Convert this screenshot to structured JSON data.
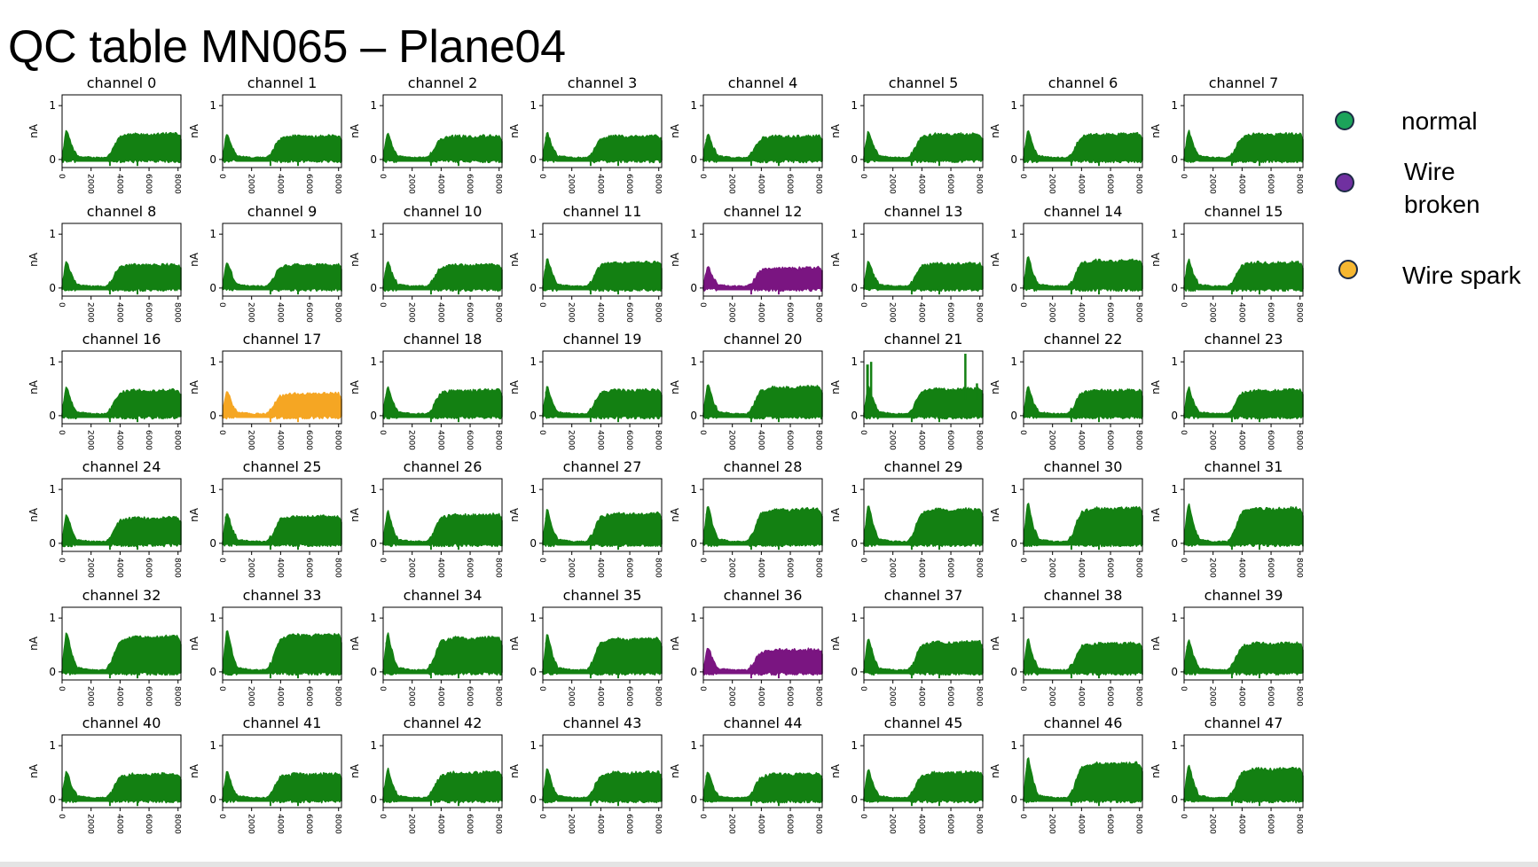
{
  "slide": {
    "title": "QC table MN065 – Plane04"
  },
  "legend": {
    "items": [
      {
        "key": "normal",
        "label": "normal",
        "color": "#1ca35a"
      },
      {
        "key": "broken",
        "label": "Wire broken",
        "color": "#7030a0"
      },
      {
        "key": "spark",
        "label": "Wire spark",
        "color": "#f6b731"
      }
    ]
  },
  "chart_data": {
    "type": "line",
    "layout": "6x8 small multiples",
    "panel_title_prefix": "channel",
    "ylabel": "nA",
    "xlim": [
      0,
      8200
    ],
    "ylim": [
      -0.15,
      1.2
    ],
    "x_ticks": [
      0,
      2000,
      4000,
      6000,
      8000
    ],
    "y_ticks": [
      0,
      1
    ],
    "grid": false,
    "status_colors": {
      "normal": "#138012",
      "broken": "#7a1581",
      "spark": "#f5a623"
    },
    "trace_profile": {
      "x": [
        0,
        300,
        700,
        1000,
        2000,
        3000,
        3400,
        3700,
        4000,
        5000,
        6000,
        7000,
        8000,
        8200
      ],
      "y": [
        0.0,
        0.3,
        0.1,
        0.02,
        0.0,
        0.0,
        0.05,
        0.15,
        0.22,
        0.25,
        0.24,
        0.25,
        0.25,
        0.2
      ]
    },
    "channels": [
      {
        "channel": 0,
        "status": "normal",
        "level": 0.42,
        "spike": 0.3
      },
      {
        "channel": 1,
        "status": "normal",
        "level": 0.38,
        "spike": 0.35
      },
      {
        "channel": 2,
        "status": "normal",
        "level": 0.38,
        "spike": 0.38
      },
      {
        "channel": 3,
        "status": "normal",
        "level": 0.38,
        "spike": 0.42
      },
      {
        "channel": 4,
        "status": "normal",
        "level": 0.38,
        "spike": 0.38
      },
      {
        "channel": 5,
        "status": "normal",
        "level": 0.42,
        "spike": 0.36
      },
      {
        "channel": 6,
        "status": "normal",
        "level": 0.42,
        "spike": 0.36
      },
      {
        "channel": 7,
        "status": "normal",
        "level": 0.42,
        "spike": 0.34
      },
      {
        "channel": 8,
        "status": "normal",
        "level": 0.38,
        "spike": 0.38
      },
      {
        "channel": 9,
        "status": "normal",
        "level": 0.38,
        "spike": 0.38
      },
      {
        "channel": 10,
        "status": "normal",
        "level": 0.38,
        "spike": 0.38
      },
      {
        "channel": 11,
        "status": "normal",
        "level": 0.42,
        "spike": 0.42
      },
      {
        "channel": 12,
        "status": "broken",
        "level": 0.32,
        "spike": 0.22
      },
      {
        "channel": 13,
        "status": "normal",
        "level": 0.4,
        "spike": 0.38
      },
      {
        "channel": 14,
        "status": "normal",
        "level": 0.46,
        "spike": 0.4
      },
      {
        "channel": 15,
        "status": "normal",
        "level": 0.42,
        "spike": 0.4
      },
      {
        "channel": 16,
        "status": "normal",
        "level": 0.42,
        "spike": 0.42
      },
      {
        "channel": 17,
        "status": "spark",
        "level": 0.36,
        "spike": 0.3
      },
      {
        "channel": 18,
        "status": "normal",
        "level": 0.42,
        "spike": 0.4
      },
      {
        "channel": 19,
        "status": "normal",
        "level": 0.42,
        "spike": 0.45
      },
      {
        "channel": 20,
        "status": "normal",
        "level": 0.48,
        "spike": 0.42
      },
      {
        "channel": 21,
        "status": "normal",
        "level": 0.45,
        "spike": 0.95
      },
      {
        "channel": 22,
        "status": "normal",
        "level": 0.42,
        "spike": 0.45
      },
      {
        "channel": 23,
        "status": "normal",
        "level": 0.42,
        "spike": 0.42
      },
      {
        "channel": 24,
        "status": "normal",
        "level": 0.42,
        "spike": 0.38
      },
      {
        "channel": 25,
        "status": "normal",
        "level": 0.45,
        "spike": 0.5
      },
      {
        "channel": 26,
        "status": "normal",
        "level": 0.48,
        "spike": 0.38
      },
      {
        "channel": 27,
        "status": "normal",
        "level": 0.5,
        "spike": 0.48
      },
      {
        "channel": 28,
        "status": "normal",
        "level": 0.58,
        "spike": 0.55
      },
      {
        "channel": 29,
        "status": "normal",
        "level": 0.58,
        "spike": 0.55
      },
      {
        "channel": 30,
        "status": "normal",
        "level": 0.6,
        "spike": 0.55
      },
      {
        "channel": 31,
        "status": "normal",
        "level": 0.6,
        "spike": 0.55
      },
      {
        "channel": 32,
        "status": "normal",
        "level": 0.6,
        "spike": 0.55
      },
      {
        "channel": 33,
        "status": "normal",
        "level": 0.64,
        "spike": 0.55
      },
      {
        "channel": 34,
        "status": "normal",
        "level": 0.58,
        "spike": 0.55
      },
      {
        "channel": 35,
        "status": "normal",
        "level": 0.56,
        "spike": 0.55
      },
      {
        "channel": 36,
        "status": "broken",
        "level": 0.36,
        "spike": 0.28
      },
      {
        "channel": 37,
        "status": "normal",
        "level": 0.5,
        "spike": 0.48
      },
      {
        "channel": 38,
        "status": "normal",
        "level": 0.48,
        "spike": 0.42
      },
      {
        "channel": 39,
        "status": "normal",
        "level": 0.48,
        "spike": 0.48
      },
      {
        "channel": 40,
        "status": "normal",
        "level": 0.42,
        "spike": 0.42
      },
      {
        "channel": 41,
        "status": "normal",
        "level": 0.42,
        "spike": 0.38
      },
      {
        "channel": 42,
        "status": "normal",
        "level": 0.45,
        "spike": 0.38
      },
      {
        "channel": 43,
        "status": "normal",
        "level": 0.45,
        "spike": 0.42
      },
      {
        "channel": 44,
        "status": "normal",
        "level": 0.42,
        "spike": 0.45
      },
      {
        "channel": 45,
        "status": "normal",
        "level": 0.45,
        "spike": 0.4
      },
      {
        "channel": 46,
        "status": "normal",
        "level": 0.62,
        "spike": 0.58
      },
      {
        "channel": 47,
        "status": "normal",
        "level": 0.52,
        "spike": 0.48
      }
    ]
  }
}
